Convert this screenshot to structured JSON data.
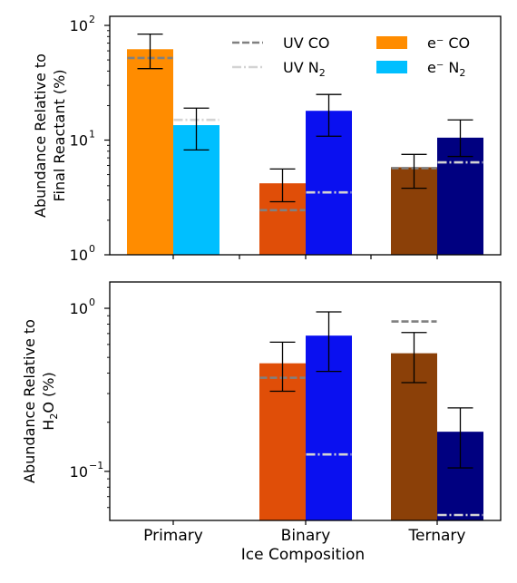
{
  "chart_data": [
    {
      "type": "bar",
      "yscale": "log",
      "ylim": [
        1,
        120
      ],
      "ylabel": [
        "Abundance Relative to",
        "Final Reactant (%)"
      ],
      "yticks": [
        {
          "value": 1,
          "label": "10",
          "exp": "0"
        },
        {
          "value": 10,
          "label": "10",
          "exp": "1"
        },
        {
          "value": 100,
          "label": "10",
          "exp": "2"
        }
      ],
      "categories": [
        "Primary",
        "Binary",
        "Ternary"
      ],
      "bars": [
        {
          "category": "Primary",
          "slot": 0,
          "value": 62,
          "err_low": 42,
          "err_high": 84,
          "color": "#ff8c00",
          "uv": 52,
          "uv_style": "dashed"
        },
        {
          "category": "Primary",
          "slot": 1,
          "value": 13.5,
          "err_low": 8.2,
          "err_high": 19,
          "color": "#00bfff",
          "uv": 15,
          "uv_style": "dashdot"
        },
        {
          "category": "Binary",
          "slot": 0,
          "value": 4.2,
          "err_low": 2.9,
          "err_high": 5.6,
          "color": "#e04e08",
          "uv": 2.45,
          "uv_style": "dashed"
        },
        {
          "category": "Binary",
          "slot": 1,
          "value": 18,
          "err_low": 10.8,
          "err_high": 25,
          "color": "#0a10f0",
          "uv": 3.5,
          "uv_style": "dashdot"
        },
        {
          "category": "Ternary",
          "slot": 0,
          "value": 5.8,
          "err_low": 3.8,
          "err_high": 7.5,
          "color": "#8b4008",
          "uv": 5.7,
          "uv_style": "dashed"
        },
        {
          "category": "Ternary",
          "slot": 1,
          "value": 10.5,
          "err_low": 7.2,
          "err_high": 15,
          "color": "#000080",
          "uv": 6.4,
          "uv_style": "dashdot"
        }
      ],
      "legend": {
        "placement": "top-right",
        "items": [
          {
            "kind": "line",
            "dash": "dashed",
            "color": "#808080",
            "label": "UV CO",
            "sub": ""
          },
          {
            "kind": "patch",
            "color": "#ff8c00",
            "label": "e⁻ CO",
            "sub": ""
          },
          {
            "kind": "line",
            "dash": "dashdot",
            "color": "#d3d3d3",
            "label": "UV N",
            "sub": "2"
          },
          {
            "kind": "patch",
            "color": "#00bfff",
            "label": "e⁻ N",
            "sub": "2"
          }
        ]
      }
    },
    {
      "type": "bar",
      "yscale": "log",
      "ylim": [
        0.05,
        1.45
      ],
      "ylabel": [
        "Abundance Relative to",
        "H",
        "2",
        "O (%)"
      ],
      "yticks": [
        {
          "value": 0.1,
          "label": "10",
          "exp": "−1"
        },
        {
          "value": 1,
          "label": "10",
          "exp": "0"
        }
      ],
      "categories": [
        "Primary",
        "Binary",
        "Ternary"
      ],
      "xlabel": "Ice Composition",
      "bars": [
        {
          "category": "Binary",
          "slot": 0,
          "value": 0.46,
          "err_low": 0.31,
          "err_high": 0.62,
          "color": "#e04e08",
          "uv": 0.375,
          "uv_style": "dashed"
        },
        {
          "category": "Binary",
          "slot": 1,
          "value": 0.68,
          "err_low": 0.41,
          "err_high": 0.95,
          "color": "#0a10f0",
          "uv": 0.127,
          "uv_style": "dashdot"
        },
        {
          "category": "Ternary",
          "slot": 0,
          "value": 0.53,
          "err_low": 0.35,
          "err_high": 0.71,
          "color": "#8b4008",
          "uv": 0.83,
          "uv_style": "dashed"
        },
        {
          "category": "Ternary",
          "slot": 1,
          "value": 0.175,
          "err_low": 0.105,
          "err_high": 0.245,
          "color": "#000080",
          "uv": 0.054,
          "uv_style": "dashdot"
        }
      ]
    }
  ]
}
